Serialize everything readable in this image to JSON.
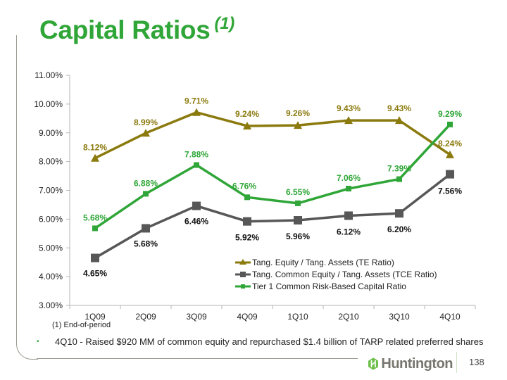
{
  "slide": {
    "title": "Capital Ratios",
    "title_superscript": "(1)",
    "footnote": "(1)  End-of-period",
    "bullet": "4Q10  - Raised $920 MM of common equity and repurchased $1.4 billion of TARP related preferred shares",
    "logo_text": "Huntington",
    "page_number": "138",
    "colors": {
      "brand_green": "#2fa637",
      "logo_grey": "#77766e"
    }
  },
  "chart_data": {
    "type": "line",
    "title": "Capital Ratios (1)",
    "xlabel": "",
    "ylabel": "",
    "categories": [
      "1Q09",
      "2Q09",
      "3Q09",
      "4Q09",
      "1Q10",
      "2Q10",
      "3Q10",
      "4Q10"
    ],
    "ylim": [
      3.0,
      11.0
    ],
    "yticks": [
      3.0,
      4.0,
      5.0,
      6.0,
      7.0,
      8.0,
      9.0,
      10.0,
      11.0
    ],
    "ytick_labels": [
      "3.00%",
      "4.00%",
      "5.00%",
      "6.00%",
      "7.00%",
      "8.00%",
      "9.00%",
      "10.00%",
      "11.00%"
    ],
    "grid": false,
    "legend_position": "lower-right",
    "series": [
      {
        "name": "Tang. Equity / Tang. Assets (TE Ratio)",
        "color": "#8b7a0e",
        "label_color": "#8b7a0e",
        "marker": "triangle",
        "values": [
          8.12,
          8.99,
          9.71,
          9.24,
          9.26,
          9.43,
          9.43,
          8.24
        ],
        "labels": [
          "8.12%",
          "8.99%",
          "9.71%",
          "9.24%",
          "9.26%",
          "9.43%",
          "9.43%",
          "8.24%"
        ]
      },
      {
        "name": "Tang. Common Equity / Tang. Assets (TCE Ratio)",
        "color": "#575757",
        "label_color": "#111111",
        "marker": "square",
        "values": [
          4.65,
          5.68,
          6.46,
          5.92,
          5.96,
          6.12,
          6.2,
          7.56
        ],
        "labels": [
          "4.65%",
          "5.68%",
          "6.46%",
          "5.92%",
          "5.96%",
          "6.12%",
          "6.20%",
          "7.56%"
        ]
      },
      {
        "name": "Tier 1 Common Risk-Based Capital Ratio",
        "color": "#2fa637",
        "label_color": "#2fa637",
        "marker": "small-square",
        "values": [
          5.68,
          6.88,
          7.88,
          6.76,
          6.55,
          7.06,
          7.39,
          9.29
        ],
        "labels": [
          "5.68%",
          "6.88%",
          "7.88%",
          "6.76%",
          "6.55%",
          "7.06%",
          "7.39%",
          "9.29%"
        ]
      }
    ]
  }
}
